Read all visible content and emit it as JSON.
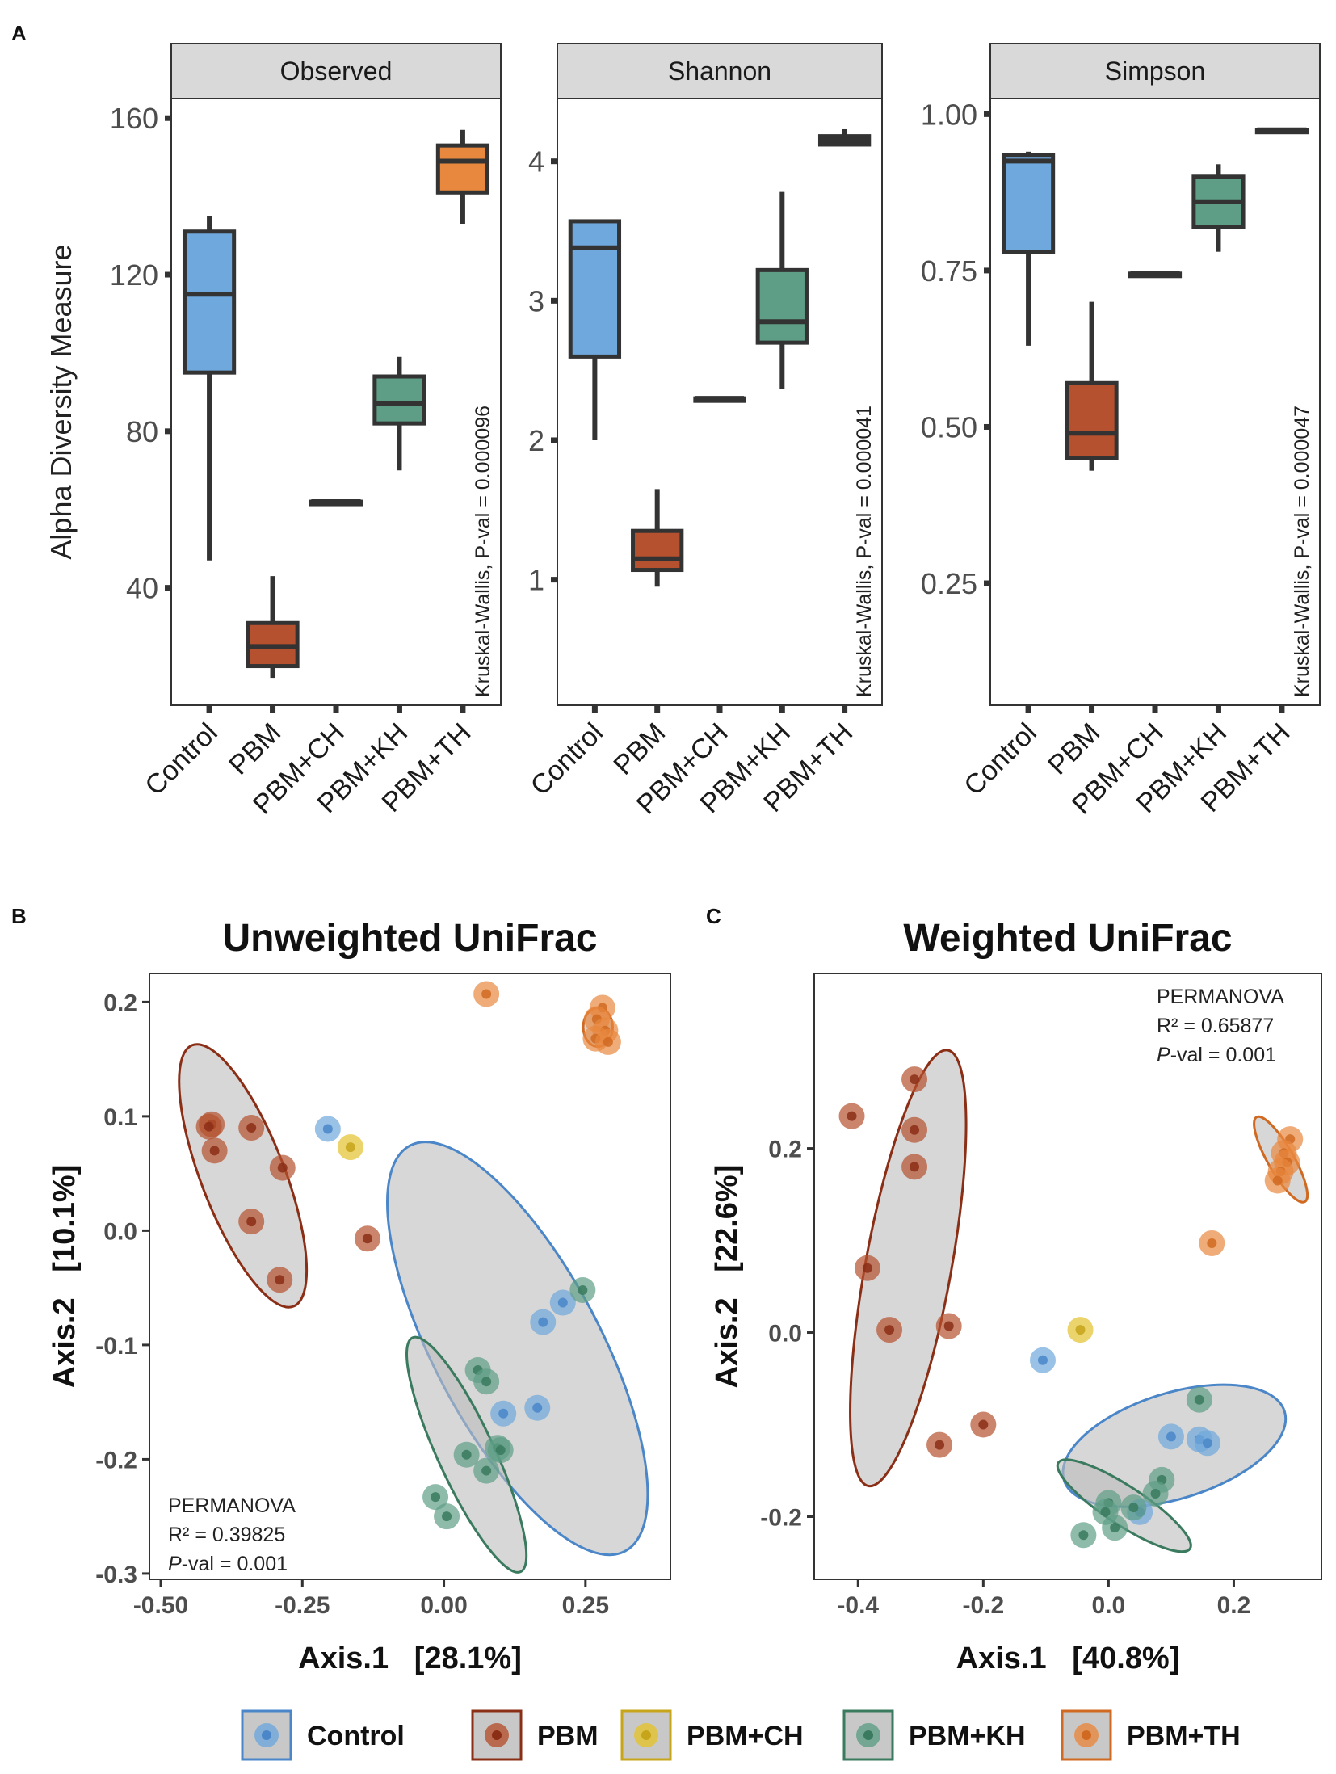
{
  "figure": {
    "panel_labels": [
      "A",
      "B",
      "C"
    ],
    "groups": [
      {
        "name": "Control",
        "fill": "#6FA8DC",
        "stroke": "#4A86C8"
      },
      {
        "name": "PBM",
        "fill": "#B5512E",
        "stroke": "#8B2E16"
      },
      {
        "name": "PBM+CH",
        "fill": "#E3C22E",
        "stroke": "#C7A51A"
      },
      {
        "name": "PBM+KH",
        "fill": "#5E9E86",
        "stroke": "#3A7A5E"
      },
      {
        "name": "PBM+TH",
        "fill": "#E8883E",
        "stroke": "#D06A22"
      }
    ]
  },
  "chart_data": [
    {
      "type": "box",
      "panel": "A",
      "title": "Observed",
      "ylabel": "Alpha Diversity Measure",
      "ylim": [
        10,
        165
      ],
      "yticks": [
        40,
        80,
        120,
        160
      ],
      "ytick_labels": [
        "40",
        "80",
        "120",
        "160"
      ],
      "categories": [
        "Control",
        "PBM",
        "PBM+CH",
        "PBM+KH",
        "PBM+TH"
      ],
      "boxes": [
        {
          "min": 47,
          "q1": 95,
          "median": 115,
          "q3": 131,
          "max": 135
        },
        {
          "min": 17,
          "q1": 20,
          "median": 25,
          "q3": 31,
          "max": 43
        },
        {
          "min": 62,
          "q1": 62,
          "median": 62,
          "q3": 62,
          "max": 62
        },
        {
          "min": 70,
          "q1": 82,
          "median": 87,
          "q3": 94,
          "max": 99
        },
        {
          "min": 133,
          "q1": 141,
          "median": 149,
          "q3": 153,
          "max": 157
        }
      ],
      "annotation": "Kruskal-Wallis, P-val = 0.000096"
    },
    {
      "type": "box",
      "panel": "A",
      "title": "Shannon",
      "ylabel": "",
      "ylim": [
        0.1,
        4.45
      ],
      "yticks": [
        1,
        2,
        3,
        4
      ],
      "ytick_labels": [
        "1",
        "2",
        "3",
        "4"
      ],
      "categories": [
        "Control",
        "PBM",
        "PBM+CH",
        "PBM+KH",
        "PBM+TH"
      ],
      "boxes": [
        {
          "min": 2.0,
          "q1": 2.6,
          "median": 3.38,
          "q3": 3.57,
          "max": 3.57
        },
        {
          "min": 0.95,
          "q1": 1.07,
          "median": 1.15,
          "q3": 1.35,
          "max": 1.65
        },
        {
          "min": 2.3,
          "q1": 2.3,
          "median": 2.3,
          "q3": 2.3,
          "max": 2.3
        },
        {
          "min": 2.37,
          "q1": 2.7,
          "median": 2.85,
          "q3": 3.22,
          "max": 3.78
        },
        {
          "min": 4.12,
          "q1": 4.12,
          "median": 4.15,
          "q3": 4.18,
          "max": 4.23
        }
      ],
      "annotation": "Kruskal-Wallis, P-val = 0.000041"
    },
    {
      "type": "box",
      "panel": "A",
      "title": "Simpson",
      "ylabel": "",
      "ylim": [
        0.055,
        1.025
      ],
      "yticks": [
        0.25,
        0.5,
        0.75,
        1.0
      ],
      "ytick_labels": [
        "0.25",
        "0.50",
        "0.75",
        "1.00"
      ],
      "categories": [
        "Control",
        "PBM",
        "PBM+CH",
        "PBM+KH",
        "PBM+TH"
      ],
      "boxes": [
        {
          "min": 0.63,
          "q1": 0.78,
          "median": 0.925,
          "q3": 0.935,
          "max": 0.94
        },
        {
          "min": 0.43,
          "q1": 0.45,
          "median": 0.49,
          "q3": 0.57,
          "max": 0.7
        },
        {
          "min": 0.745,
          "q1": 0.745,
          "median": 0.745,
          "q3": 0.745,
          "max": 0.745
        },
        {
          "min": 0.78,
          "q1": 0.82,
          "median": 0.86,
          "q3": 0.9,
          "max": 0.92
        },
        {
          "min": 0.975,
          "q1": 0.975,
          "median": 0.975,
          "q3": 0.975,
          "max": 0.975
        }
      ],
      "annotation": "Kruskal-Wallis, P-val = 0.000047"
    },
    {
      "type": "scatter",
      "panel": "B",
      "title": "Unweighted UniFrac",
      "xlabel": "Axis.1   [28.1%]",
      "ylabel": "Axis.2   [10.1%]",
      "xlim": [
        -0.52,
        0.4
      ],
      "ylim": [
        -0.305,
        0.225
      ],
      "xticks": [
        -0.5,
        -0.25,
        0.0,
        0.25
      ],
      "xtick_labels": [
        "-0.50",
        "-0.25",
        "0.00",
        "0.25"
      ],
      "yticks": [
        -0.3,
        -0.2,
        -0.1,
        0.0,
        0.1,
        0.2
      ],
      "ytick_labels": [
        "-0.3",
        "-0.2",
        "-0.1",
        "0.0",
        "0.1",
        "0.2"
      ],
      "stats": {
        "heading": "PERMANOVA",
        "r2": "R² = 0.39825",
        "pval_italic": "P",
        "pval_rest": "-val = 0.001"
      },
      "ellipses": [
        {
          "group": 1,
          "cx": -0.355,
          "cy": 0.048,
          "rx": 0.145,
          "ry": 0.05,
          "angle_deg": -52
        },
        {
          "group": 0,
          "cx": 0.13,
          "cy": -0.103,
          "rx": 0.26,
          "ry": 0.09,
          "angle_deg": -43
        },
        {
          "group": 3,
          "cx": 0.04,
          "cy": -0.196,
          "rx": 0.14,
          "ry": 0.032,
          "angle_deg": -47
        },
        {
          "group": 4,
          "cx": 0.272,
          "cy": 0.178,
          "rx": 0.026,
          "ry": 0.017,
          "angle_deg": 0
        }
      ],
      "points": [
        {
          "group": 1,
          "x": -0.41,
          "y": 0.093
        },
        {
          "group": 1,
          "x": -0.415,
          "y": 0.091
        },
        {
          "group": 1,
          "x": -0.34,
          "y": 0.09
        },
        {
          "group": 1,
          "x": -0.405,
          "y": 0.07
        },
        {
          "group": 1,
          "x": -0.285,
          "y": 0.055
        },
        {
          "group": 1,
          "x": -0.34,
          "y": 0.008
        },
        {
          "group": 1,
          "x": -0.135,
          "y": -0.007
        },
        {
          "group": 1,
          "x": -0.29,
          "y": -0.043
        },
        {
          "group": 0,
          "x": -0.205,
          "y": 0.089
        },
        {
          "group": 2,
          "x": -0.165,
          "y": 0.073
        },
        {
          "group": 4,
          "x": 0.075,
          "y": 0.207
        },
        {
          "group": 4,
          "x": 0.28,
          "y": 0.195
        },
        {
          "group": 4,
          "x": 0.27,
          "y": 0.185
        },
        {
          "group": 4,
          "x": 0.285,
          "y": 0.175
        },
        {
          "group": 4,
          "x": 0.268,
          "y": 0.168
        },
        {
          "group": 4,
          "x": 0.29,
          "y": 0.165
        },
        {
          "group": 0,
          "x": 0.175,
          "y": -0.08
        },
        {
          "group": 0,
          "x": 0.21,
          "y": -0.063
        },
        {
          "group": 3,
          "x": 0.245,
          "y": -0.052
        },
        {
          "group": 3,
          "x": 0.06,
          "y": -0.122
        },
        {
          "group": 3,
          "x": 0.075,
          "y": -0.132
        },
        {
          "group": 0,
          "x": 0.105,
          "y": -0.16
        },
        {
          "group": 0,
          "x": 0.165,
          "y": -0.155
        },
        {
          "group": 3,
          "x": 0.095,
          "y": -0.19
        },
        {
          "group": 3,
          "x": 0.1,
          "y": -0.192
        },
        {
          "group": 3,
          "x": 0.04,
          "y": -0.196
        },
        {
          "group": 3,
          "x": 0.075,
          "y": -0.21
        },
        {
          "group": 3,
          "x": -0.015,
          "y": -0.233
        },
        {
          "group": 3,
          "x": 0.005,
          "y": -0.25
        }
      ]
    },
    {
      "type": "scatter",
      "panel": "C",
      "title": "Weighted UniFrac",
      "xlabel": "Axis.1   [40.8%]",
      "ylabel": "Axis.2   [22.6%]",
      "xlim": [
        -0.47,
        0.34
      ],
      "ylim": [
        -0.268,
        0.39
      ],
      "xticks": [
        -0.4,
        -0.2,
        0.0,
        0.2
      ],
      "xtick_labels": [
        "-0.4",
        "-0.2",
        "0.0",
        "0.2"
      ],
      "yticks": [
        -0.2,
        0.0,
        0.2
      ],
      "ytick_labels": [
        "-0.2",
        "0.0",
        "0.2"
      ],
      "stats": {
        "heading": "PERMANOVA",
        "r2": "R² = 0.65877",
        "pval_italic": "P",
        "pval_rest": "-val = 0.001"
      },
      "ellipses": [
        {
          "group": 1,
          "cx": -0.32,
          "cy": 0.07,
          "rx": 0.245,
          "ry": 0.066,
          "angle_deg": 75
        },
        {
          "group": 0,
          "cx": 0.105,
          "cy": -0.123,
          "rx": 0.18,
          "ry": 0.058,
          "angle_deg": 12
        },
        {
          "group": 3,
          "cx": 0.025,
          "cy": -0.188,
          "rx": 0.115,
          "ry": 0.022,
          "angle_deg": -24
        },
        {
          "group": 4,
          "cx": 0.275,
          "cy": 0.188,
          "rx": 0.06,
          "ry": 0.017,
          "angle_deg": -50
        }
      ],
      "points": [
        {
          "group": 1,
          "x": -0.41,
          "y": 0.235
        },
        {
          "group": 1,
          "x": -0.31,
          "y": 0.275
        },
        {
          "group": 1,
          "x": -0.31,
          "y": 0.22
        },
        {
          "group": 1,
          "x": -0.31,
          "y": 0.18
        },
        {
          "group": 1,
          "x": -0.385,
          "y": 0.07
        },
        {
          "group": 1,
          "x": -0.35,
          "y": 0.003
        },
        {
          "group": 1,
          "x": -0.255,
          "y": 0.007
        },
        {
          "group": 1,
          "x": -0.27,
          "y": -0.122
        },
        {
          "group": 1,
          "x": -0.2,
          "y": -0.1
        },
        {
          "group": 0,
          "x": -0.105,
          "y": -0.03
        },
        {
          "group": 2,
          "x": -0.045,
          "y": 0.003
        },
        {
          "group": 4,
          "x": 0.29,
          "y": 0.21
        },
        {
          "group": 4,
          "x": 0.28,
          "y": 0.195
        },
        {
          "group": 4,
          "x": 0.285,
          "y": 0.185
        },
        {
          "group": 4,
          "x": 0.275,
          "y": 0.175
        },
        {
          "group": 4,
          "x": 0.27,
          "y": 0.165
        },
        {
          "group": 4,
          "x": 0.165,
          "y": 0.097
        },
        {
          "group": 3,
          "x": 0.145,
          "y": -0.073
        },
        {
          "group": 0,
          "x": 0.1,
          "y": -0.113
        },
        {
          "group": 0,
          "x": 0.145,
          "y": -0.116
        },
        {
          "group": 0,
          "x": 0.158,
          "y": -0.12
        },
        {
          "group": 3,
          "x": 0.085,
          "y": -0.16
        },
        {
          "group": 3,
          "x": 0.075,
          "y": -0.175
        },
        {
          "group": 0,
          "x": 0.05,
          "y": -0.195
        },
        {
          "group": 3,
          "x": 0.04,
          "y": -0.19
        },
        {
          "group": 3,
          "x": 0.0,
          "y": -0.185
        },
        {
          "group": 3,
          "x": -0.005,
          "y": -0.195
        },
        {
          "group": 3,
          "x": 0.01,
          "y": -0.212
        },
        {
          "group": 3,
          "x": -0.04,
          "y": -0.22
        }
      ]
    }
  ]
}
